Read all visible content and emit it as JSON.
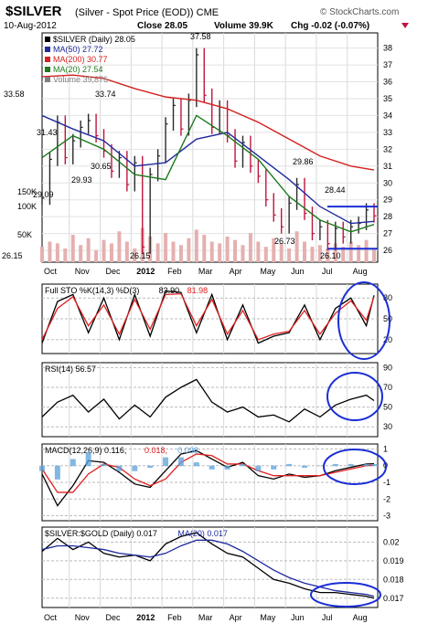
{
  "header": {
    "symbol": "$SILVER",
    "description": "(Silver - Spot Price (EOD)) CME",
    "source": "© StockCharts.com",
    "date": "10-Aug-2012",
    "close_label": "Close 28.05",
    "volume_label": "Volume 39.9K",
    "chg_label": "Chg -0.02 (-0.07%)"
  },
  "months": [
    "Oct",
    "Nov",
    "Dec",
    "2012",
    "Feb",
    "Mar",
    "Apr",
    "May",
    "Jun",
    "Jul",
    "Aug"
  ],
  "colors": {
    "price_up": "#2a2a2a",
    "price_down": "#c0143c",
    "ma50": "#1f2a9c",
    "ma200": "#d42020",
    "ma20": "#1d7a1d",
    "volume": "#e6b0b0",
    "annotation": "#1a2ed6",
    "macd_hist": "#5aa0d8",
    "signal": "#e02020"
  },
  "chart_data": [
    {
      "type": "line",
      "title": "$SILVER (Silver - Spot Price (EOD)) CME",
      "legend": [
        {
          "label": "$SILVER (Daily) 28.05",
          "color": "#000000"
        },
        {
          "label": "MA(50) 27.72",
          "color": "#1f2a9c"
        },
        {
          "label": "MA(200) 30.77",
          "color": "#d42020"
        },
        {
          "label": "MA(20) 27.54",
          "color": "#1d7a1d"
        },
        {
          "label": "Volume 39,876",
          "color": "#808080"
        }
      ],
      "yticks": [
        26,
        27,
        28,
        29,
        30,
        31,
        32,
        33,
        34,
        35,
        36,
        37,
        38
      ],
      "ylim": [
        25.3,
        38.9
      ],
      "volume_ticks": [
        "150K",
        "100K",
        "50K"
      ],
      "price_annotations": [
        "37.58",
        "33.58",
        "33.74",
        "31.43",
        "30.65",
        "29.93",
        "29.09",
        "29.86",
        "28.44",
        "26.73",
        "26.15",
        "26.15",
        "26.10"
      ],
      "series": [
        {
          "name": "$SILVER",
          "x": [
            0,
            5,
            10,
            15,
            20,
            25,
            30,
            35,
            40,
            45,
            50,
            55,
            60,
            65,
            70,
            75,
            80,
            85,
            90,
            95,
            100,
            105,
            110,
            115,
            120,
            125,
            130,
            135,
            140,
            145,
            150,
            155,
            160,
            165,
            170,
            175,
            180,
            185,
            190,
            195,
            200,
            205,
            210,
            215
          ],
          "values": [
            29.1,
            31.4,
            33.6,
            31.5,
            32.5,
            33.3,
            33.7,
            32.8,
            31.9,
            30.7,
            31.5,
            29.9,
            31.2,
            26.2,
            30.5,
            31.6,
            33.5,
            34.6,
            33.2,
            34.9,
            37.6,
            35.2,
            33.3,
            34.5,
            32.8,
            31.3,
            32.4,
            31.0,
            30.4,
            29.0,
            28.1,
            27.4,
            28.8,
            29.9,
            28.2,
            27.0,
            27.4,
            26.4,
            27.3,
            26.8,
            27.4,
            27.6,
            28.4,
            28.05
          ]
        },
        {
          "name": "MA(50)",
          "x": [
            0,
            20,
            40,
            60,
            80,
            100,
            120,
            140,
            160,
            180,
            200,
            215
          ],
          "values": [
            34.0,
            33.2,
            32.5,
            31.0,
            31.2,
            32.6,
            33.0,
            31.6,
            30.2,
            28.6,
            27.6,
            27.72
          ]
        },
        {
          "name": "MA(200)",
          "x": [
            0,
            20,
            40,
            60,
            80,
            100,
            120,
            140,
            160,
            180,
            200,
            215
          ],
          "values": [
            36.3,
            36.4,
            36.2,
            35.6,
            35.1,
            34.9,
            34.4,
            33.6,
            32.6,
            31.6,
            31.0,
            30.77
          ]
        },
        {
          "name": "MA(20)",
          "x": [
            0,
            20,
            40,
            60,
            80,
            100,
            120,
            140,
            160,
            180,
            200,
            215
          ],
          "values": [
            31.5,
            32.8,
            32.0,
            30.5,
            30.2,
            34.0,
            32.8,
            31.4,
            29.2,
            27.8,
            27.1,
            27.54
          ]
        }
      ],
      "volume_values": [
        45,
        60,
        55,
        40,
        80,
        50,
        70,
        35,
        65,
        55,
        90,
        60,
        40,
        100,
        75,
        55,
        85,
        60,
        50,
        70,
        95,
        80,
        60,
        55,
        75,
        65,
        50,
        85,
        60,
        45,
        70,
        55,
        40,
        90,
        60,
        45,
        50,
        40,
        55,
        45,
        60,
        50,
        65,
        40
      ]
    },
    {
      "type": "line",
      "legend": [
        {
          "label": "Full STO %K(14,3) %D(3)",
          "color": "#000000"
        },
        {
          "label": "83.90",
          "color": "#000000"
        },
        {
          "label": "81.98",
          "color": "#e02020"
        }
      ],
      "yticks": [
        20,
        50,
        80
      ],
      "ylim": [
        0,
        100
      ],
      "series": [
        {
          "name": "%K",
          "x": [
            0,
            10,
            20,
            30,
            40,
            50,
            60,
            70,
            80,
            90,
            100,
            110,
            120,
            130,
            140,
            150,
            160,
            170,
            180,
            190,
            200,
            210,
            215
          ],
          "values": [
            15,
            75,
            85,
            30,
            80,
            20,
            85,
            25,
            90,
            88,
            30,
            85,
            20,
            70,
            15,
            25,
            30,
            70,
            20,
            65,
            80,
            40,
            83.9
          ]
        },
        {
          "name": "%D",
          "x": [
            0,
            10,
            20,
            30,
            40,
            50,
            60,
            70,
            80,
            90,
            100,
            110,
            120,
            130,
            140,
            150,
            160,
            170,
            180,
            190,
            200,
            210,
            215
          ],
          "values": [
            20,
            65,
            82,
            40,
            70,
            28,
            78,
            35,
            85,
            86,
            40,
            78,
            28,
            62,
            20,
            28,
            32,
            62,
            28,
            58,
            76,
            48,
            81.98
          ]
        }
      ]
    },
    {
      "type": "line",
      "legend": [
        {
          "label": "RSI(14) 56.57",
          "color": "#000000"
        }
      ],
      "yticks": [
        30,
        50,
        70,
        90
      ],
      "ylim": [
        20,
        95
      ],
      "series": [
        {
          "name": "RSI(14)",
          "x": [
            0,
            10,
            20,
            30,
            40,
            50,
            60,
            70,
            80,
            90,
            100,
            110,
            120,
            130,
            140,
            150,
            160,
            170,
            180,
            190,
            200,
            210,
            215
          ],
          "values": [
            40,
            55,
            62,
            45,
            58,
            38,
            52,
            40,
            60,
            70,
            78,
            55,
            45,
            50,
            40,
            42,
            35,
            48,
            40,
            52,
            58,
            62,
            56.57
          ]
        }
      ]
    },
    {
      "type": "line",
      "legend": [
        {
          "label": "MACD(12,26,9) 0.116,",
          "color": "#000000"
        },
        {
          "label": "0.018,",
          "color": "#e02020"
        },
        {
          "label": "0.098",
          "color": "#5aa0d8"
        }
      ],
      "yticks": [
        1,
        0,
        -1,
        -2,
        -3
      ],
      "ylim": [
        -3.3,
        1.3
      ],
      "series": [
        {
          "name": "MACD",
          "x": [
            0,
            10,
            20,
            30,
            40,
            50,
            60,
            70,
            80,
            90,
            100,
            110,
            120,
            130,
            140,
            150,
            160,
            170,
            180,
            190,
            200,
            210,
            215
          ],
          "values": [
            -0.5,
            -2.4,
            -1.2,
            0.3,
            0.2,
            -0.4,
            -1.1,
            -1.3,
            -0.3,
            0.7,
            0.9,
            0.4,
            -0.1,
            0.2,
            -0.6,
            -0.8,
            -0.5,
            -0.7,
            -0.6,
            -0.3,
            -0.1,
            0.1,
            0.116
          ]
        },
        {
          "name": "Signal",
          "x": [
            0,
            10,
            20,
            30,
            40,
            50,
            60,
            70,
            80,
            90,
            100,
            110,
            120,
            130,
            140,
            150,
            160,
            170,
            180,
            190,
            200,
            210,
            215
          ],
          "values": [
            -0.2,
            -1.6,
            -1.6,
            -0.5,
            0.1,
            -0.1,
            -0.8,
            -1.2,
            -0.8,
            0.2,
            0.7,
            0.6,
            0.1,
            0.1,
            -0.3,
            -0.6,
            -0.6,
            -0.6,
            -0.6,
            -0.4,
            -0.2,
            0.0,
            0.018
          ]
        }
      ]
    },
    {
      "type": "line",
      "legend": [
        {
          "label": "$SILVER:$GOLD (Daily) 0.017",
          "color": "#000000"
        },
        {
          "label": "MA(20) 0.017",
          "color": "#1f2a9c"
        }
      ],
      "yticks": [
        0.017,
        0.018,
        0.019,
        0.02
      ],
      "ylim": [
        0.0165,
        0.0208
      ],
      "series": [
        {
          "name": "$SILVER:$GOLD",
          "x": [
            0,
            10,
            20,
            30,
            40,
            50,
            60,
            70,
            80,
            90,
            100,
            110,
            120,
            130,
            140,
            150,
            160,
            170,
            180,
            190,
            200,
            210,
            215
          ],
          "values": [
            0.0195,
            0.0202,
            0.0196,
            0.02,
            0.0194,
            0.0192,
            0.0193,
            0.019,
            0.0199,
            0.0203,
            0.0205,
            0.0199,
            0.0194,
            0.0192,
            0.0186,
            0.018,
            0.0178,
            0.0175,
            0.0173,
            0.0173,
            0.0172,
            0.0171,
            0.017
          ]
        },
        {
          "name": "MA(20)",
          "x": [
            0,
            10,
            20,
            30,
            40,
            50,
            60,
            70,
            80,
            90,
            100,
            110,
            120,
            130,
            140,
            150,
            160,
            170,
            180,
            190,
            200,
            210,
            215
          ],
          "values": [
            0.0196,
            0.0198,
            0.0198,
            0.0197,
            0.0196,
            0.0194,
            0.0193,
            0.0192,
            0.0194,
            0.0198,
            0.0201,
            0.0201,
            0.0199,
            0.0195,
            0.019,
            0.0185,
            0.0181,
            0.0178,
            0.0176,
            0.0174,
            0.0173,
            0.0172,
            0.0171
          ]
        }
      ]
    }
  ]
}
